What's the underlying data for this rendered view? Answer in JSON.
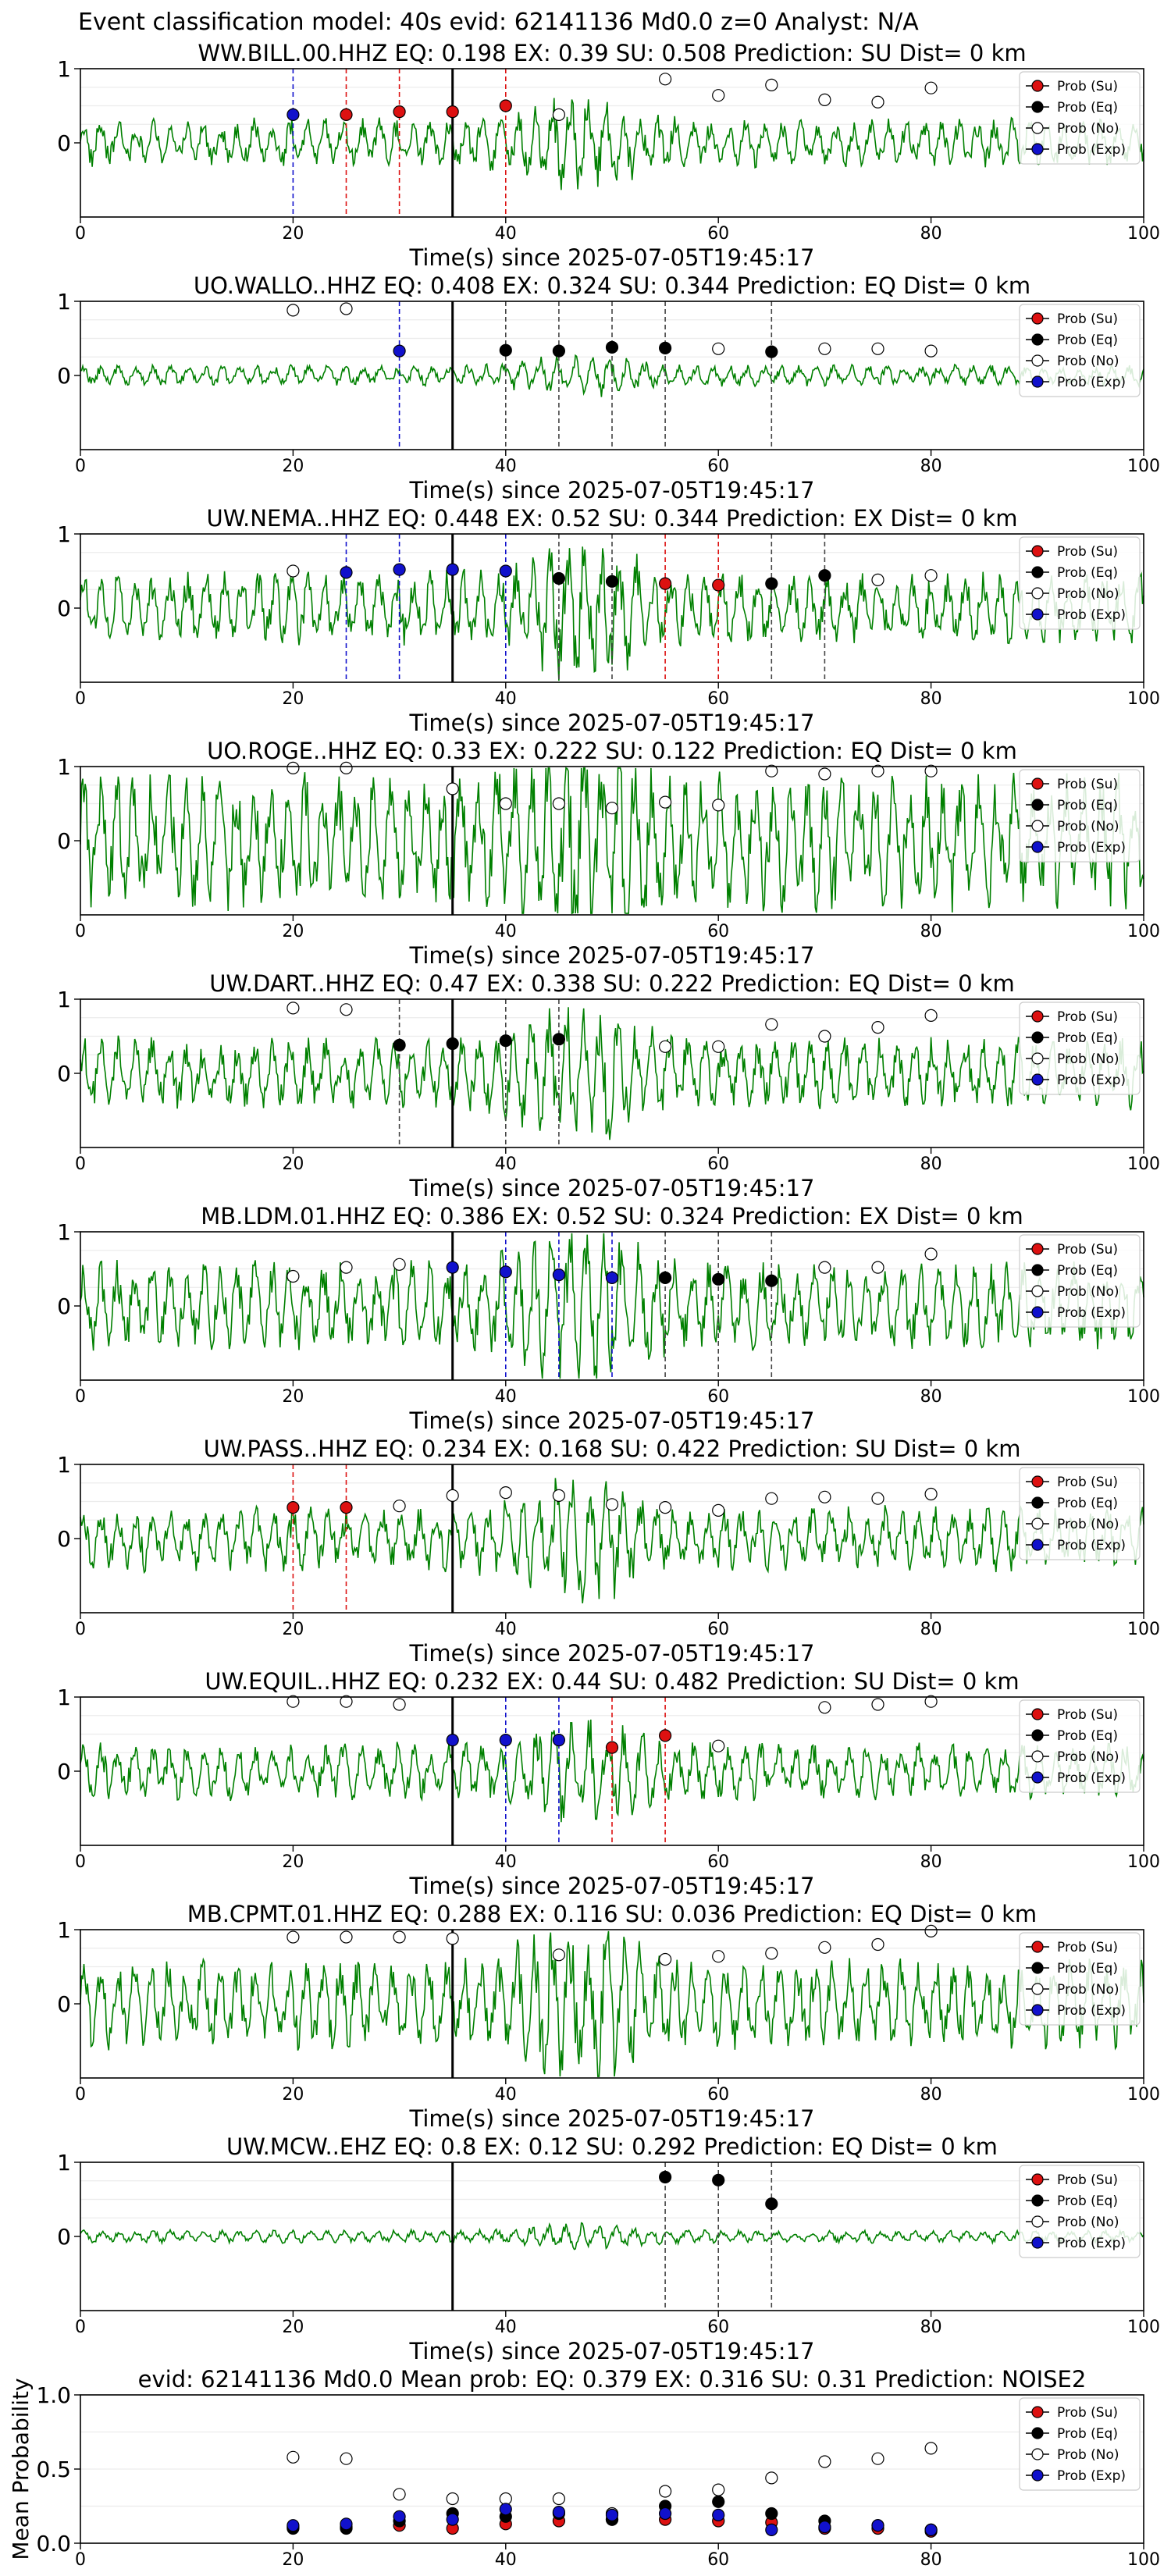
{
  "suptitle": "Event classification model: 40s evid: 62141136 Md0.0 z=0 Analyst: N/A",
  "xlabel": "Time(s) since 2025-07-05T19:45:17",
  "legend_labels": [
    "Prob (Su)",
    "Prob (Eq)",
    "Prob (No)",
    "Prob (Exp)"
  ],
  "colors": {
    "su": "#dd1111",
    "eq": "#000000",
    "no": "#ffffff",
    "exp": "#1111cc",
    "waveform": "#008000",
    "pick": "#000000"
  },
  "chart_data": [
    {
      "type": "line",
      "station": "WW.BILL.00.HHZ",
      "title": "WW.BILL.00.HHZ   EQ: 0.198  EX: 0.39  SU: 0.508   Prediction: SU    Dist= 0 km",
      "xlim": [
        0,
        100
      ],
      "ylim": [
        -1,
        1
      ],
      "yticks": [
        "1",
        "0"
      ],
      "xticks": [
        "0",
        "20",
        "40",
        "60",
        "80",
        "100"
      ],
      "pick_time": 35,
      "noise": 0.3,
      "markers": [
        {
          "t": 20,
          "cls": "exp",
          "p": 0.38
        },
        {
          "t": 25,
          "cls": "su",
          "p": 0.38
        },
        {
          "t": 30,
          "cls": "su",
          "p": 0.42
        },
        {
          "t": 35,
          "cls": "su",
          "p": 0.42
        },
        {
          "t": 40,
          "cls": "su",
          "p": 0.5
        },
        {
          "t": 45,
          "cls": "no",
          "p": 0.38
        },
        {
          "t": 55,
          "cls": "no",
          "p": 0.86
        },
        {
          "t": 60,
          "cls": "no",
          "p": 0.64
        },
        {
          "t": 65,
          "cls": "no",
          "p": 0.78
        },
        {
          "t": 70,
          "cls": "no",
          "p": 0.58
        },
        {
          "t": 75,
          "cls": "no",
          "p": 0.55
        },
        {
          "t": 80,
          "cls": "no",
          "p": 0.74
        }
      ]
    },
    {
      "type": "line",
      "station": "UO.WALLO..HHZ",
      "title": "UO.WALLO..HHZ   EQ: 0.408  EX: 0.324  SU: 0.344   Prediction: EQ    Dist= 0 km",
      "xlim": [
        0,
        100
      ],
      "ylim": [
        -1,
        1
      ],
      "yticks": [
        "1",
        "0"
      ],
      "xticks": [
        "0",
        "20",
        "40",
        "60",
        "80",
        "100"
      ],
      "pick_time": 35,
      "noise": 0.13,
      "markers": [
        {
          "t": 20,
          "cls": "no",
          "p": 0.88
        },
        {
          "t": 25,
          "cls": "no",
          "p": 0.9
        },
        {
          "t": 30,
          "cls": "exp",
          "p": 0.33
        },
        {
          "t": 40,
          "cls": "eq",
          "p": 0.34
        },
        {
          "t": 45,
          "cls": "eq",
          "p": 0.33
        },
        {
          "t": 50,
          "cls": "eq",
          "p": 0.38
        },
        {
          "t": 55,
          "cls": "eq",
          "p": 0.37
        },
        {
          "t": 60,
          "cls": "no",
          "p": 0.36
        },
        {
          "t": 65,
          "cls": "eq",
          "p": 0.32
        },
        {
          "t": 70,
          "cls": "no",
          "p": 0.36
        },
        {
          "t": 75,
          "cls": "no",
          "p": 0.36
        },
        {
          "t": 80,
          "cls": "no",
          "p": 0.33
        }
      ]
    },
    {
      "type": "line",
      "station": "UW.NEMA..HHZ",
      "title": "UW.NEMA..HHZ   EQ: 0.448  EX: 0.52  SU: 0.344   Prediction: EX    Dist= 0 km",
      "xlim": [
        0,
        100
      ],
      "ylim": [
        -1,
        1
      ],
      "yticks": [
        "1",
        "0"
      ],
      "xticks": [
        "0",
        "20",
        "40",
        "60",
        "80",
        "100"
      ],
      "pick_time": 35,
      "noise": 0.45,
      "markers": [
        {
          "t": 20,
          "cls": "no",
          "p": 0.5
        },
        {
          "t": 25,
          "cls": "exp",
          "p": 0.48
        },
        {
          "t": 30,
          "cls": "exp",
          "p": 0.52
        },
        {
          "t": 35,
          "cls": "exp",
          "p": 0.52
        },
        {
          "t": 40,
          "cls": "exp",
          "p": 0.5
        },
        {
          "t": 45,
          "cls": "eq",
          "p": 0.4
        },
        {
          "t": 50,
          "cls": "eq",
          "p": 0.36
        },
        {
          "t": 55,
          "cls": "su",
          "p": 0.33
        },
        {
          "t": 60,
          "cls": "su",
          "p": 0.31
        },
        {
          "t": 65,
          "cls": "eq",
          "p": 0.33
        },
        {
          "t": 70,
          "cls": "eq",
          "p": 0.44
        },
        {
          "t": 75,
          "cls": "no",
          "p": 0.38
        },
        {
          "t": 80,
          "cls": "no",
          "p": 0.44
        }
      ]
    },
    {
      "type": "line",
      "station": "UO.ROGE..HHZ",
      "title": "UO.ROGE..HHZ   EQ: 0.33  EX: 0.222  SU: 0.122   Prediction: EQ    Dist= 0 km",
      "xlim": [
        0,
        100
      ],
      "ylim": [
        -1,
        1
      ],
      "yticks": [
        "1",
        "0"
      ],
      "xticks": [
        "0",
        "20",
        "40",
        "60",
        "80",
        "100"
      ],
      "pick_time": 35,
      "noise": 0.85,
      "markers": [
        {
          "t": 20,
          "cls": "no",
          "p": 0.98
        },
        {
          "t": 25,
          "cls": "no",
          "p": 0.98
        },
        {
          "t": 35,
          "cls": "no",
          "p": 0.7
        },
        {
          "t": 40,
          "cls": "no",
          "p": 0.5
        },
        {
          "t": 45,
          "cls": "no",
          "p": 0.5
        },
        {
          "t": 50,
          "cls": "no",
          "p": 0.44
        },
        {
          "t": 55,
          "cls": "no",
          "p": 0.52
        },
        {
          "t": 60,
          "cls": "no",
          "p": 0.48
        },
        {
          "t": 65,
          "cls": "no",
          "p": 0.94
        },
        {
          "t": 70,
          "cls": "no",
          "p": 0.9
        },
        {
          "t": 75,
          "cls": "no",
          "p": 0.94
        },
        {
          "t": 80,
          "cls": "no",
          "p": 0.94
        }
      ]
    },
    {
      "type": "line",
      "station": "UW.DART..HHZ",
      "title": "UW.DART..HHZ   EQ: 0.47  EX: 0.338  SU: 0.222   Prediction: EQ    Dist= 0 km",
      "xlim": [
        0,
        100
      ],
      "ylim": [
        -1,
        1
      ],
      "yticks": [
        "1",
        "0"
      ],
      "xticks": [
        "0",
        "20",
        "40",
        "60",
        "80",
        "100"
      ],
      "pick_time": 35,
      "noise": 0.45,
      "markers": [
        {
          "t": 20,
          "cls": "no",
          "p": 0.88
        },
        {
          "t": 25,
          "cls": "no",
          "p": 0.86
        },
        {
          "t": 30,
          "cls": "eq",
          "p": 0.38
        },
        {
          "t": 35,
          "cls": "eq",
          "p": 0.4
        },
        {
          "t": 40,
          "cls": "eq",
          "p": 0.44
        },
        {
          "t": 45,
          "cls": "eq",
          "p": 0.46
        },
        {
          "t": 55,
          "cls": "no",
          "p": 0.36
        },
        {
          "t": 60,
          "cls": "no",
          "p": 0.36
        },
        {
          "t": 65,
          "cls": "no",
          "p": 0.66
        },
        {
          "t": 70,
          "cls": "no",
          "p": 0.5
        },
        {
          "t": 75,
          "cls": "no",
          "p": 0.62
        },
        {
          "t": 80,
          "cls": "no",
          "p": 0.78
        }
      ]
    },
    {
      "type": "line",
      "station": "MB.LDM.01.HHZ",
      "title": "MB.LDM.01.HHZ   EQ: 0.386  EX: 0.52  SU: 0.324   Prediction: EX    Dist= 0 km",
      "xlim": [
        0,
        100
      ],
      "ylim": [
        -1,
        1
      ],
      "yticks": [
        "1",
        "0"
      ],
      "xticks": [
        "0",
        "20",
        "40",
        "60",
        "80",
        "100"
      ],
      "pick_time": 35,
      "noise": 0.55,
      "markers": [
        {
          "t": 20,
          "cls": "no",
          "p": 0.4
        },
        {
          "t": 25,
          "cls": "no",
          "p": 0.52
        },
        {
          "t": 30,
          "cls": "no",
          "p": 0.56
        },
        {
          "t": 35,
          "cls": "exp",
          "p": 0.52
        },
        {
          "t": 40,
          "cls": "exp",
          "p": 0.46
        },
        {
          "t": 45,
          "cls": "exp",
          "p": 0.42
        },
        {
          "t": 50,
          "cls": "exp",
          "p": 0.38
        },
        {
          "t": 55,
          "cls": "eq",
          "p": 0.38
        },
        {
          "t": 60,
          "cls": "eq",
          "p": 0.36
        },
        {
          "t": 65,
          "cls": "eq",
          "p": 0.34
        },
        {
          "t": 70,
          "cls": "no",
          "p": 0.52
        },
        {
          "t": 75,
          "cls": "no",
          "p": 0.52
        },
        {
          "t": 80,
          "cls": "no",
          "p": 0.7
        }
      ]
    },
    {
      "type": "line",
      "station": "UW.PASS..HHZ",
      "title": "UW.PASS..HHZ   EQ: 0.234  EX: 0.168  SU: 0.422   Prediction: SU    Dist= 0 km",
      "xlim": [
        0,
        100
      ],
      "ylim": [
        -1,
        1
      ],
      "yticks": [
        "1",
        "0"
      ],
      "xticks": [
        "0",
        "20",
        "40",
        "60",
        "80",
        "100"
      ],
      "pick_time": 35,
      "noise": 0.4,
      "markers": [
        {
          "t": 20,
          "cls": "su",
          "p": 0.42
        },
        {
          "t": 25,
          "cls": "su",
          "p": 0.42
        },
        {
          "t": 30,
          "cls": "no",
          "p": 0.44
        },
        {
          "t": 35,
          "cls": "no",
          "p": 0.58
        },
        {
          "t": 40,
          "cls": "no",
          "p": 0.62
        },
        {
          "t": 45,
          "cls": "no",
          "p": 0.58
        },
        {
          "t": 50,
          "cls": "no",
          "p": 0.46
        },
        {
          "t": 55,
          "cls": "no",
          "p": 0.42
        },
        {
          "t": 60,
          "cls": "no",
          "p": 0.38
        },
        {
          "t": 65,
          "cls": "no",
          "p": 0.54
        },
        {
          "t": 70,
          "cls": "no",
          "p": 0.56
        },
        {
          "t": 75,
          "cls": "no",
          "p": 0.54
        },
        {
          "t": 80,
          "cls": "no",
          "p": 0.6
        }
      ]
    },
    {
      "type": "line",
      "station": "UW.EQUIL..HHZ",
      "title": "UW.EQUIL..HHZ   EQ: 0.232  EX: 0.44  SU: 0.482   Prediction: SU    Dist= 0 km",
      "xlim": [
        0,
        100
      ],
      "ylim": [
        -1,
        1
      ],
      "yticks": [
        "1",
        "0"
      ],
      "xticks": [
        "0",
        "20",
        "40",
        "60",
        "80",
        "100"
      ],
      "pick_time": 35,
      "noise": 0.35,
      "markers": [
        {
          "t": 20,
          "cls": "no",
          "p": 0.94
        },
        {
          "t": 25,
          "cls": "no",
          "p": 0.94
        },
        {
          "t": 30,
          "cls": "no",
          "p": 0.9
        },
        {
          "t": 35,
          "cls": "exp",
          "p": 0.42
        },
        {
          "t": 40,
          "cls": "exp",
          "p": 0.42
        },
        {
          "t": 45,
          "cls": "exp",
          "p": 0.42
        },
        {
          "t": 50,
          "cls": "su",
          "p": 0.32
        },
        {
          "t": 55,
          "cls": "su",
          "p": 0.48
        },
        {
          "t": 60,
          "cls": "no",
          "p": 0.34
        },
        {
          "t": 70,
          "cls": "no",
          "p": 0.86
        },
        {
          "t": 75,
          "cls": "no",
          "p": 0.9
        },
        {
          "t": 80,
          "cls": "no",
          "p": 0.94
        }
      ]
    },
    {
      "type": "line",
      "station": "MB.CPMT.01.HHZ",
      "title": "MB.CPMT.01.HHZ   EQ: 0.288  EX: 0.116  SU: 0.036   Prediction: EQ    Dist= 0 km",
      "xlim": [
        0,
        100
      ],
      "ylim": [
        -1,
        1
      ],
      "yticks": [
        "1",
        "0"
      ],
      "xticks": [
        "0",
        "20",
        "40",
        "60",
        "80",
        "100"
      ],
      "pick_time": 35,
      "noise": 0.55,
      "markers": [
        {
          "t": 20,
          "cls": "no",
          "p": 0.9
        },
        {
          "t": 25,
          "cls": "no",
          "p": 0.9
        },
        {
          "t": 30,
          "cls": "no",
          "p": 0.9
        },
        {
          "t": 35,
          "cls": "no",
          "p": 0.88
        },
        {
          "t": 45,
          "cls": "no",
          "p": 0.66
        },
        {
          "t": 55,
          "cls": "no",
          "p": 0.6
        },
        {
          "t": 60,
          "cls": "no",
          "p": 0.64
        },
        {
          "t": 65,
          "cls": "no",
          "p": 0.68
        },
        {
          "t": 70,
          "cls": "no",
          "p": 0.76
        },
        {
          "t": 75,
          "cls": "no",
          "p": 0.8
        },
        {
          "t": 80,
          "cls": "no",
          "p": 0.98
        }
      ]
    },
    {
      "type": "line",
      "station": "UW.MCW..EHZ",
      "title": "UW.MCW..EHZ   EQ: 0.8  EX: 0.12  SU: 0.292   Prediction: EQ    Dist= 0 km",
      "xlim": [
        0,
        100
      ],
      "ylim": [
        -1,
        1
      ],
      "yticks": [
        "1",
        "0"
      ],
      "xticks": [
        "0",
        "20",
        "40",
        "60",
        "80",
        "100"
      ],
      "pick_time": 35,
      "noise": 0.08,
      "markers": [
        {
          "t": 55,
          "cls": "eq",
          "p": 0.8
        },
        {
          "t": 60,
          "cls": "eq",
          "p": 0.76
        },
        {
          "t": 65,
          "cls": "eq",
          "p": 0.44
        }
      ]
    },
    {
      "type": "scatter",
      "title": "evid: 62141136  Md0.0   Mean prob:   EQ: 0.379  EX: 0.316  SU: 0.31   Prediction: NOISE2",
      "ylabel": "Mean Probability",
      "xlim": [
        0,
        100
      ],
      "ylim": [
        0,
        1
      ],
      "yticks": [
        "1.0",
        "0.5",
        "0.0"
      ],
      "xticks": [
        "0",
        "20",
        "40",
        "60",
        "80",
        "100"
      ],
      "x": [
        20,
        25,
        30,
        35,
        40,
        45,
        50,
        55,
        60,
        65,
        70,
        75,
        80
      ],
      "series": [
        {
          "name": "Prob (Su)",
          "cls": "su",
          "values": [
            0.11,
            0.11,
            0.12,
            0.1,
            0.13,
            0.15,
            0.16,
            0.16,
            0.15,
            0.14,
            0.1,
            0.1,
            0.08
          ]
        },
        {
          "name": "Prob (Eq)",
          "cls": "eq",
          "values": [
            0.1,
            0.1,
            0.15,
            0.2,
            0.18,
            0.2,
            0.16,
            0.25,
            0.28,
            0.2,
            0.15,
            0.12,
            0.09
          ]
        },
        {
          "name": "Prob (No)",
          "cls": "no",
          "values": [
            0.58,
            0.57,
            0.33,
            0.3,
            0.3,
            0.3,
            0.2,
            0.35,
            0.36,
            0.44,
            0.55,
            0.57,
            0.64
          ]
        },
        {
          "name": "Prob (Exp)",
          "cls": "exp",
          "values": [
            0.12,
            0.13,
            0.18,
            0.16,
            0.23,
            0.21,
            0.19,
            0.2,
            0.19,
            0.09,
            0.11,
            0.12,
            0.09
          ]
        }
      ]
    }
  ]
}
